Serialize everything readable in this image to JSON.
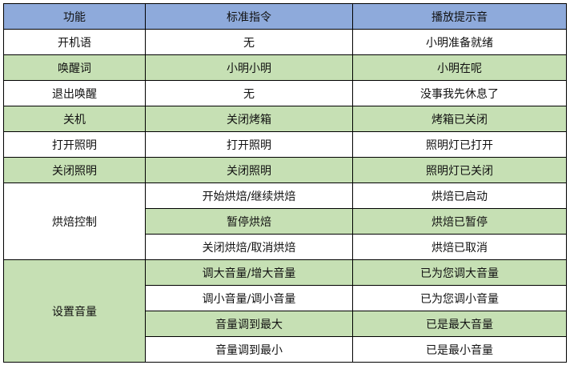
{
  "header": [
    "功能",
    "标准指令",
    "播放提示音"
  ],
  "colors": {
    "header": "#8eaadb",
    "green": "#c6e0b4",
    "white": "#ffffff"
  },
  "rows": [
    {
      "func": "开机语",
      "cmd": "无",
      "sound": "小明准备就绪",
      "green": false
    },
    {
      "func": "唤醒词",
      "cmd": "小明小明",
      "sound": "小明在呢",
      "green": true
    },
    {
      "func": "退出唤醒",
      "cmd": "无",
      "sound": "没事我先休息了",
      "green": false
    },
    {
      "func": "关机",
      "cmd": "关闭烤箱",
      "sound": "烤箱已关闭",
      "green": true
    },
    {
      "func": "打开照明",
      "cmd": "打开照明",
      "sound": "照明灯已打开",
      "green": false
    },
    {
      "func": "关闭照明",
      "cmd": "关闭照明",
      "sound": "照明灯已关闭",
      "green": true
    }
  ],
  "groups": [
    {
      "func": "烘焙控制",
      "green": false,
      "items": [
        {
          "cmd": "开始烘焙/继续烘焙",
          "sound": "烘焙已启动",
          "green": false
        },
        {
          "cmd": "暂停烘焙",
          "sound": "烘焙已暂停",
          "green": true
        },
        {
          "cmd": "关闭烘焙/取消烘焙",
          "sound": "烘焙已取消",
          "green": false
        }
      ]
    },
    {
      "func": "设置音量",
      "green": true,
      "items": [
        {
          "cmd": "调大音量/增大音量",
          "sound": "已为您调大音量",
          "green": true
        },
        {
          "cmd": "调小音量/调小音量",
          "sound": "已为您调小音量",
          "green": false
        },
        {
          "cmd": "音量调到最大",
          "sound": "已是最大音量",
          "green": true
        },
        {
          "cmd": "音量调到最小",
          "sound": "已是最小音量",
          "green": false
        }
      ]
    }
  ]
}
